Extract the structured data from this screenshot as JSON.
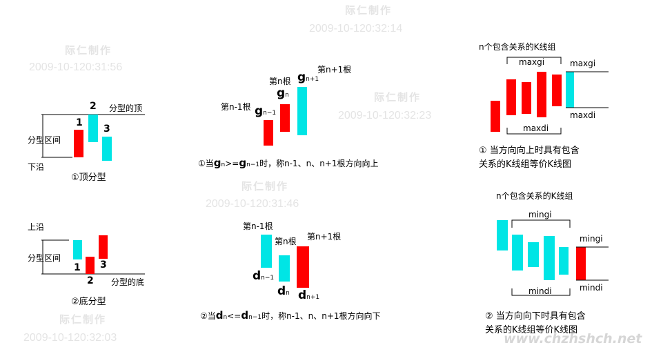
{
  "watermarks": {
    "brand": "际仁制作",
    "ts1": "2009-10-120:32:14",
    "ts2": "2009-10-120:31:56",
    "ts3": "2009-10-120:32:23",
    "ts4": "2009-10-120:31:46",
    "ts5": "2009-10-120:32:03",
    "site": "www.chzhshch.net"
  },
  "top_fractal": {
    "num1": "1",
    "num2": "2",
    "num3": "3",
    "top_label": "分型的顶",
    "range_label": "分型区间",
    "bottom_label": "下沿",
    "caption": "①顶分型"
  },
  "bottom_fractal": {
    "num1": "1",
    "num2": "2",
    "num3": "3",
    "top_label": "上沿",
    "range_label": "分型区间",
    "bottom_label": "分型的底",
    "caption": "②底分型"
  },
  "up_direction": {
    "label_n1": "第n-1根",
    "label_n": "第n根",
    "label_np1": "第n+1根",
    "g": "g",
    "sub_n1": "n−1",
    "sub_n": "n",
    "sub_np1": "n+1",
    "caption_pre": "①当",
    "caption_op": ">=",
    "caption_post": "时，称n-1、n、n+1根方向向上"
  },
  "down_direction": {
    "label_n1": "第n-1根",
    "label_n": "第n根",
    "label_np1": "第n+1根",
    "d": "d",
    "sub_n1": "n−1",
    "sub_n": "n",
    "sub_np1": "n+1",
    "caption_pre": "②当",
    "caption_op": "<=",
    "caption_post": "时，称n-1、n、n+1根方向向下"
  },
  "up_containment": {
    "group_label": "n个包含关系的K线组",
    "maxg_top": "maxgi",
    "maxg_right": "maxgi",
    "maxd_bottom": "maxdi",
    "maxd_right": "maxdi",
    "caption_line1": "① 当方向向上时具有包含",
    "caption_line2": "关系的K线组等价K线图"
  },
  "down_containment": {
    "group_label": "n个包含关系的K线组",
    "ming_top": "mingi",
    "ming_right": "mingi",
    "mind_bottom": "mindi",
    "mind_right": "mindi",
    "caption_line1": "② 当方向向下时具有包含",
    "caption_line2": "关系的K线组等价K线图"
  },
  "colors": {
    "up_bar": "#ff0000",
    "down_bar": "#00e5e5",
    "watermark": "#e4e4e4"
  }
}
